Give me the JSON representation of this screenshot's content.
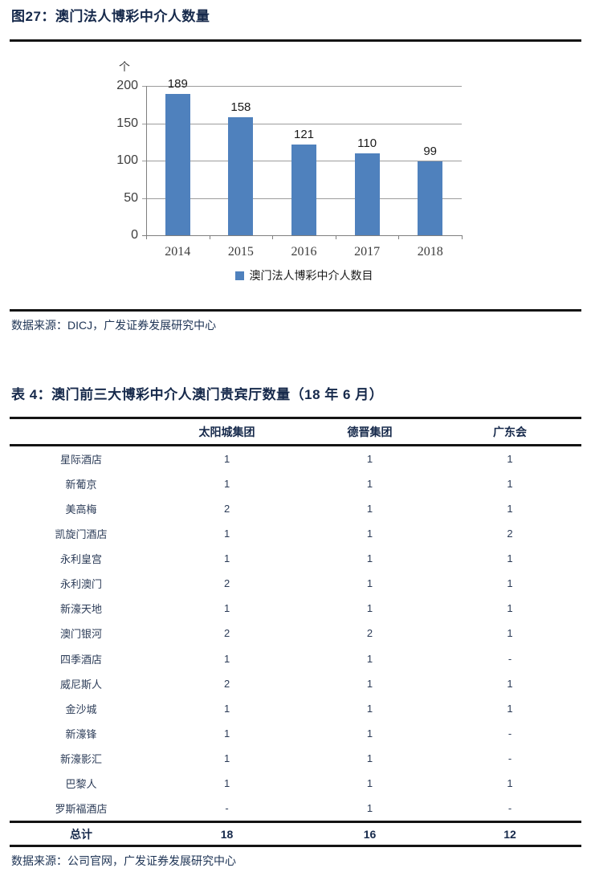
{
  "figure": {
    "title": "图27：澳门法人博彩中介人数量",
    "source": "数据来源：DICJ，广发证券发展研究中心"
  },
  "chart_data": {
    "type": "bar",
    "title": "澳门法人博彩中介人数量",
    "unit_label": "个",
    "categories": [
      "2014",
      "2015",
      "2016",
      "2017",
      "2018"
    ],
    "values": [
      189,
      158,
      121,
      110,
      99
    ],
    "legend": [
      "澳门法人博彩中介人数目"
    ],
    "legend_position": "bottom",
    "ylim": [
      0,
      200
    ],
    "yticks": [
      0,
      50,
      100,
      150,
      200
    ],
    "grid": true,
    "xlabel": "",
    "ylabel": "个",
    "bar_color": "#4f81bd"
  },
  "table": {
    "title": "表 4：澳门前三大博彩中介人澳门贵宾厅数量（18 年 6 月）",
    "columns": [
      "",
      "太阳城集团",
      "德晋集团",
      "广东会"
    ],
    "rows": [
      [
        "星际酒店",
        "1",
        "1",
        "1"
      ],
      [
        "新葡京",
        "1",
        "1",
        "1"
      ],
      [
        "美高梅",
        "2",
        "1",
        "1"
      ],
      [
        "凯旋门酒店",
        "1",
        "1",
        "2"
      ],
      [
        "永利皇宫",
        "1",
        "1",
        "1"
      ],
      [
        "永利澳门",
        "2",
        "1",
        "1"
      ],
      [
        "新濠天地",
        "1",
        "1",
        "1"
      ],
      [
        "澳门银河",
        "2",
        "2",
        "1"
      ],
      [
        "四季酒店",
        "1",
        "1",
        "-"
      ],
      [
        "威尼斯人",
        "2",
        "1",
        "1"
      ],
      [
        "金沙城",
        "1",
        "1",
        "1"
      ],
      [
        "新濠锋",
        "1",
        "1",
        "-"
      ],
      [
        "新濠影汇",
        "1",
        "1",
        "-"
      ],
      [
        "巴黎人",
        "1",
        "1",
        "1"
      ],
      [
        "罗斯福酒店",
        "-",
        "1",
        "-"
      ]
    ],
    "total_row": [
      "总计",
      "18",
      "16",
      "12"
    ],
    "source": "数据来源：公司官网，广发证券发展研究中心"
  },
  "colors": {
    "title_navy": "#16294b",
    "bar_blue": "#4f81bd",
    "grid_gray": "#9c9c9c",
    "axis_gray": "#7f7f7f",
    "rule_black": "#141414"
  }
}
